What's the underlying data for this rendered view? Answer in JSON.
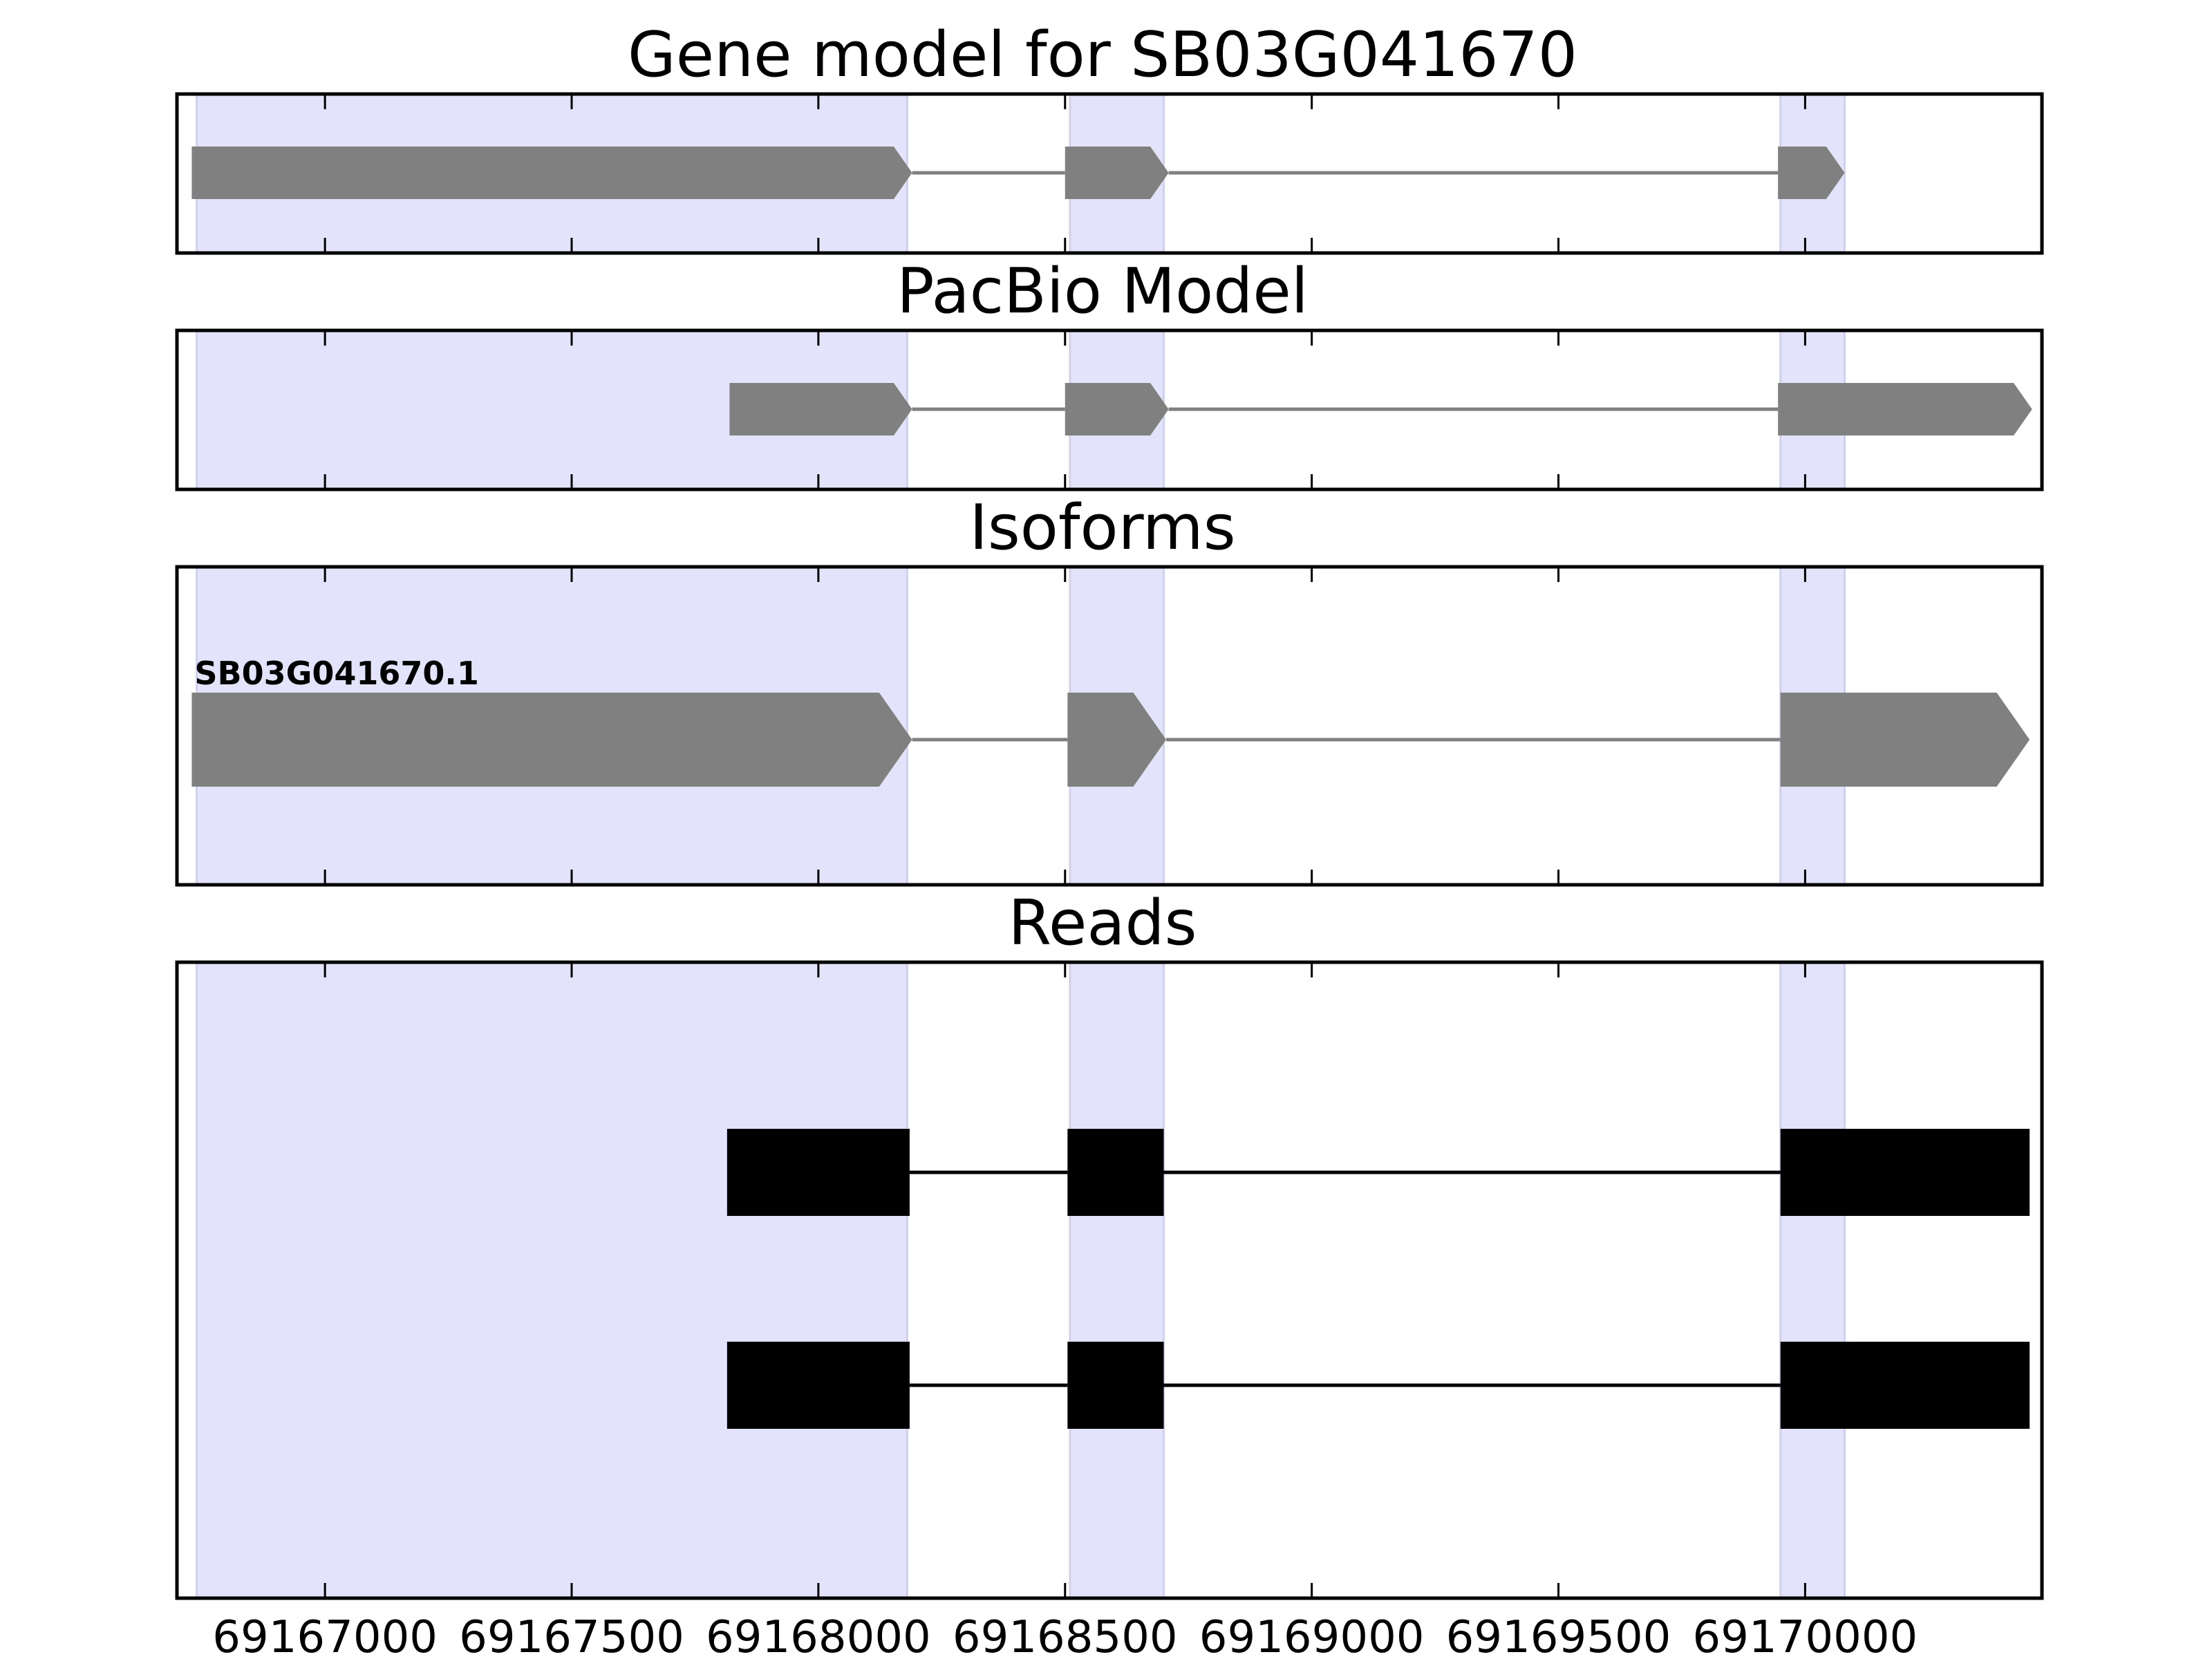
{
  "chart_data": {
    "type": "gene-structure",
    "xlim": [
      69166700,
      69170480
    ],
    "x_ticks": [
      69167000,
      69167500,
      69168000,
      69168500,
      69169000,
      69169500,
      69170000
    ],
    "x_tick_labels": [
      "69167000",
      "69167500",
      "69168000",
      "69168500",
      "69169000",
      "69169500",
      "69170000"
    ],
    "highlight_regions": [
      [
        69166740,
        69168180
      ],
      [
        69168510,
        69168700
      ],
      [
        69169950,
        69170080
      ]
    ],
    "colors": {
      "highlight": "#e3e3fb",
      "highlight_edge": "#d0d0ee",
      "model_feature": "#808080",
      "read_feature": "#000000",
      "axes": "#000000"
    },
    "panels": [
      {
        "id": "gene-model",
        "title": "Gene model for SB03G041670",
        "tracks": [
          {
            "label": "",
            "style": "arrow",
            "exons": [
              [
                69166730,
                69168190
              ],
              [
                69168500,
                69168710
              ],
              [
                69169945,
                69170080
              ]
            ]
          }
        ]
      },
      {
        "id": "pacbio-model",
        "title": "PacBio Model",
        "tracks": [
          {
            "label": "",
            "style": "arrow",
            "exons": [
              [
                69167820,
                69168190
              ],
              [
                69168500,
                69168710
              ],
              [
                69169945,
                69170460
              ]
            ]
          }
        ]
      },
      {
        "id": "isoforms",
        "title": "Isoforms",
        "tracks": [
          {
            "label": "SB03G041670.1",
            "style": "arrow",
            "exons": [
              [
                69166730,
                69168190
              ],
              [
                69168505,
                69168705
              ],
              [
                69169950,
                69170455
              ]
            ]
          }
        ]
      },
      {
        "id": "reads",
        "title": "Reads",
        "tracks": [
          {
            "label": "",
            "style": "box",
            "exons": [
              [
                69167815,
                69168185
              ],
              [
                69168505,
                69168700
              ],
              [
                69169950,
                69170455
              ]
            ]
          },
          {
            "label": "",
            "style": "box",
            "exons": [
              [
                69167815,
                69168185
              ],
              [
                69168505,
                69168700
              ],
              [
                69169950,
                69170455
              ]
            ]
          }
        ]
      }
    ]
  }
}
